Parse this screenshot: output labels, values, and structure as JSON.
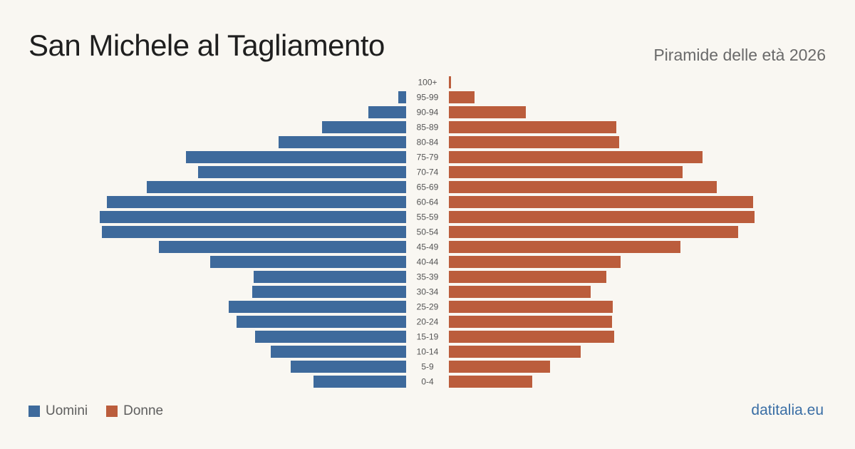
{
  "header": {
    "title": "San Michele al Tagliamento",
    "subtitle": "Piramide delle età 2026"
  },
  "legend": {
    "men_label": "Uomini",
    "women_label": "Donne"
  },
  "brand": "datitalia.eu",
  "colors": {
    "men": "#3e6a9c",
    "women": "#bb5d3c",
    "background": "#f9f7f2"
  },
  "chart_data": {
    "type": "bar",
    "orientation": "horizontal-pyramid",
    "categories": [
      "100+",
      "95-99",
      "90-94",
      "85-89",
      "80-84",
      "75-79",
      "70-74",
      "65-69",
      "60-64",
      "55-59",
      "50-54",
      "45-49",
      "40-44",
      "35-39",
      "30-34",
      "25-29",
      "20-24",
      "15-19",
      "10-14",
      "5-9",
      "0-4"
    ],
    "series": [
      {
        "name": "Uomini",
        "values": [
          0,
          11,
          53,
          118,
          179,
          309,
          292,
          364,
          420,
          430,
          427,
          347,
          275,
          214,
          216,
          249,
          238,
          212,
          190,
          162,
          130
        ]
      },
      {
        "name": "Donne",
        "values": [
          3,
          36,
          108,
          235,
          239,
          356,
          328,
          376,
          427,
          429,
          406,
          325,
          241,
          221,
          199,
          230,
          229,
          232,
          185,
          142,
          117
        ]
      }
    ],
    "xlim": [
      0,
      440
    ],
    "grid": false,
    "legend_position": "bottom-left"
  }
}
